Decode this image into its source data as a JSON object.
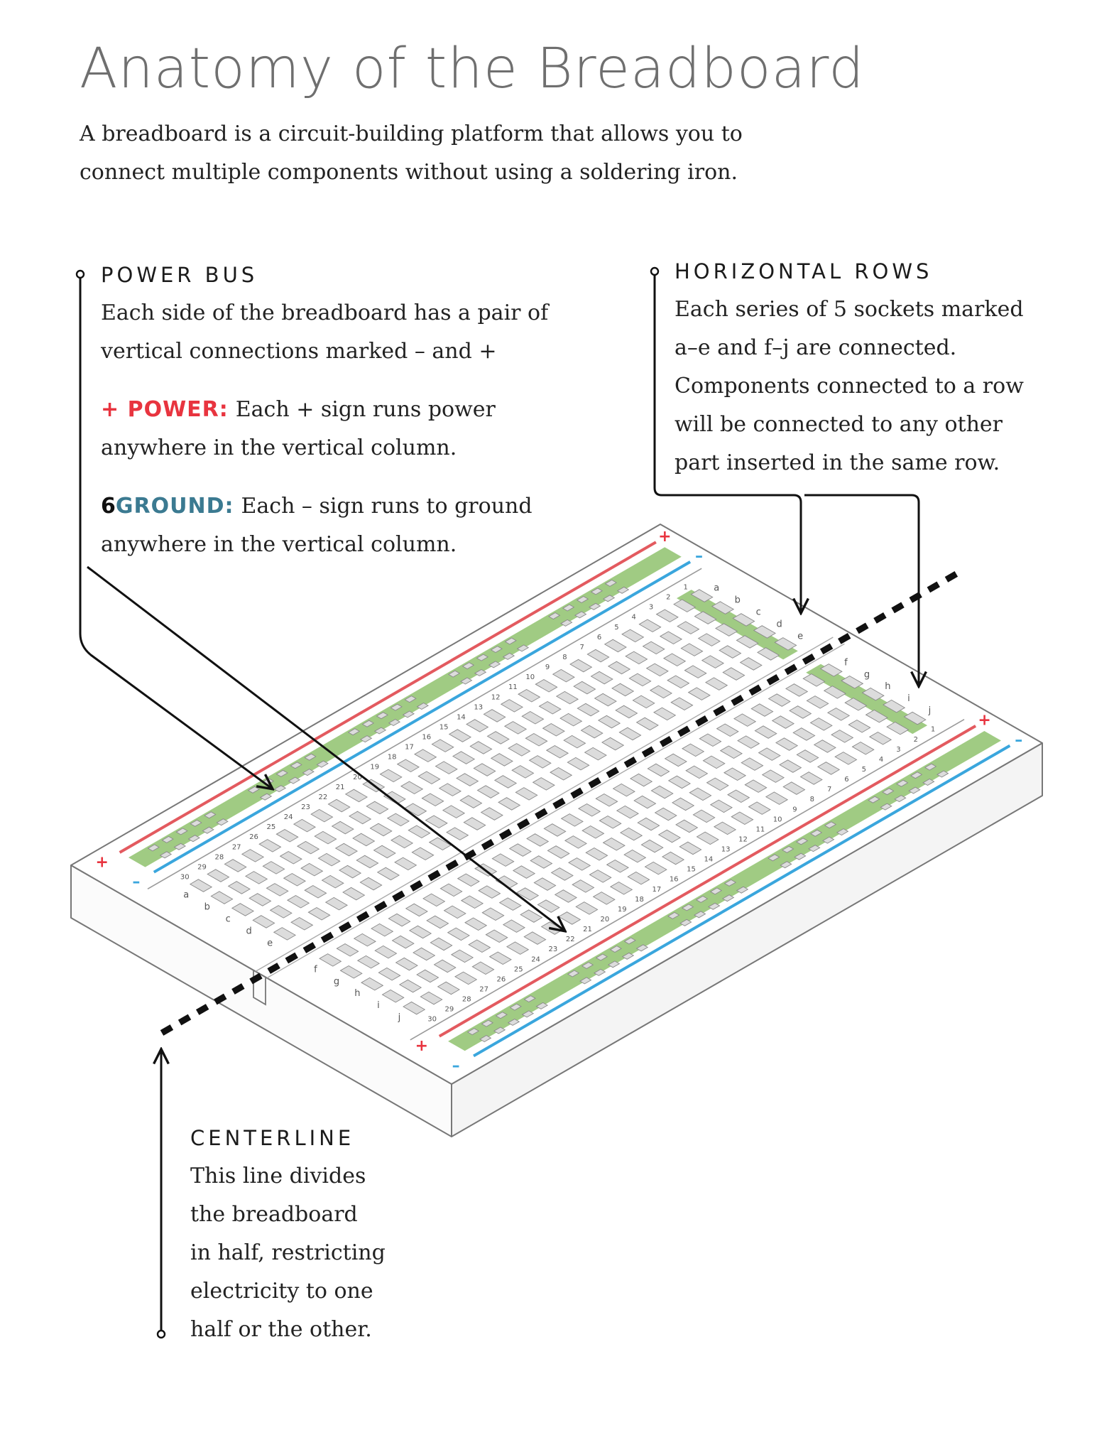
{
  "header": {
    "title": "Anatomy of the Breadboard",
    "intro_line1": "A breadboard is a circuit-building platform that allows you to",
    "intro_line2": "connect multiple components without using a soldering iron."
  },
  "power_bus": {
    "heading": "POWER BUS",
    "line1": "Each side of the breadboard has a pair of",
    "line2": "vertical connections marked – and +",
    "power_label": "+ POWER:",
    "power_line1": "Each + sign runs power",
    "power_line2": "anywhere in the vertical column.",
    "ground_number": "6",
    "ground_label": "GROUND:",
    "ground_line1": "Each – sign runs to ground",
    "ground_line2": "anywhere in the vertical column."
  },
  "horizontal_rows": {
    "heading": "HORIZONTAL ROWS",
    "lines": [
      "Each series of 5 sockets marked",
      "a–e and f–j are connected.",
      "Components connected to a row",
      "will be connected to any other",
      "part inserted in the same row."
    ]
  },
  "centerline": {
    "heading": "CENTERLINE",
    "lines": [
      "This line divides",
      "the breadboard",
      "in half, restricting",
      "electricity to one",
      "half or the other."
    ]
  },
  "breadboard": {
    "row_count": 30,
    "left_column_letters": [
      "a",
      "b",
      "c",
      "d",
      "e"
    ],
    "right_column_letters": [
      "f",
      "g",
      "h",
      "i",
      "j"
    ],
    "plus_sign": "+",
    "minus_sign": "–"
  },
  "colors": {
    "power": "#e8343f",
    "ground": "#3b7a91",
    "rail_red": "#e35a5f",
    "rail_blue": "#3aa6dd",
    "highlight_green": "#8fc26d",
    "outline": "#777777",
    "socket_fill": "#dcdcdc"
  }
}
